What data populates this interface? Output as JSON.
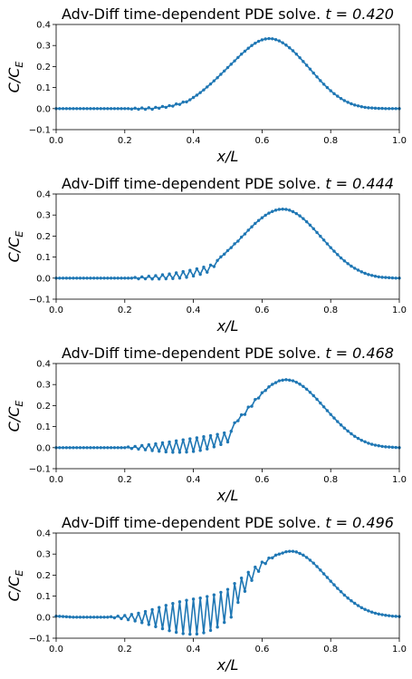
{
  "chart_data": [
    {
      "type": "line",
      "title_prefix": "Adv-Diff time-dependent PDE solve. ",
      "title_time": "t = 0.420",
      "xlabel": "x/L",
      "ylabel": "C/C_E",
      "xlim": [
        0,
        1
      ],
      "ylim": [
        -0.1,
        0.4
      ],
      "xticks": [
        "0.0",
        "0.2",
        "0.4",
        "0.6",
        "0.8",
        "1.0"
      ],
      "yticks": [
        "−0.1",
        "0.0",
        "0.1",
        "0.2",
        "0.3",
        "0.4"
      ],
      "series": [
        {
          "color": "#1f77b4",
          "x": [
            0,
            0.01,
            0.02,
            0.03,
            0.04,
            0.05,
            0.06,
            0.07,
            0.08,
            0.09,
            0.1,
            0.11,
            0.12,
            0.13,
            0.14,
            0.15,
            0.16,
            0.17,
            0.18,
            0.19,
            0.2,
            0.21,
            0.22,
            0.23,
            0.24,
            0.25,
            0.26,
            0.27,
            0.28,
            0.29,
            0.3,
            0.31,
            0.32,
            0.33,
            0.34,
            0.35,
            0.36,
            0.37,
            0.38,
            0.39,
            0.4,
            0.41,
            0.42,
            0.43,
            0.44,
            0.45,
            0.46,
            0.47,
            0.48,
            0.49,
            0.5,
            0.51,
            0.52,
            0.53,
            0.54,
            0.55,
            0.56,
            0.57,
            0.58,
            0.59,
            0.6,
            0.61,
            0.62,
            0.63,
            0.64,
            0.65,
            0.66,
            0.67,
            0.68,
            0.69,
            0.7,
            0.71,
            0.72,
            0.73,
            0.74,
            0.75,
            0.76,
            0.77,
            0.78,
            0.79,
            0.8,
            0.81,
            0.82,
            0.83,
            0.84,
            0.85,
            0.86,
            0.87,
            0.88,
            0.89,
            0.9,
            0.91,
            0.92,
            0.93,
            0.94,
            0.95,
            0.96,
            0.97,
            0.98,
            0.99,
            1.0
          ],
          "y": [
            0.0,
            0.0,
            0.0,
            0.0,
            0.0,
            0.0,
            0.0,
            0.0,
            0.0,
            0.0,
            0.0,
            0.0,
            0.0,
            0.0,
            0.0,
            0.0,
            0.0,
            0.0,
            0.0,
            0.0,
            0.0,
            0.0,
            -0.002,
            0.002,
            -0.003,
            0.003,
            -0.003,
            0.004,
            -0.003,
            0.006,
            0.002,
            0.01,
            0.006,
            0.014,
            0.012,
            0.022,
            0.02,
            0.031,
            0.032,
            0.042,
            0.053,
            0.064,
            0.076,
            0.089,
            0.103,
            0.117,
            0.132,
            0.147,
            0.163,
            0.179,
            0.195,
            0.211,
            0.227,
            0.243,
            0.259,
            0.273,
            0.287,
            0.3,
            0.311,
            0.32,
            0.327,
            0.331,
            0.333,
            0.332,
            0.328,
            0.322,
            0.313,
            0.302,
            0.289,
            0.275,
            0.259,
            0.242,
            0.224,
            0.206,
            0.188,
            0.169,
            0.151,
            0.133,
            0.116,
            0.1,
            0.085,
            0.071,
            0.059,
            0.048,
            0.038,
            0.03,
            0.023,
            0.017,
            0.013,
            0.009,
            0.006,
            0.004,
            0.003,
            0.002,
            0.001,
            0.001,
            0.0,
            0.0,
            0.0,
            0.0,
            0.0
          ]
        }
      ]
    },
    {
      "type": "line",
      "title_prefix": "Adv-Diff time-dependent PDE solve. ",
      "title_time": "t = 0.444",
      "xlabel": "x/L",
      "ylabel": "C/C_E",
      "xlim": [
        0,
        1
      ],
      "ylim": [
        -0.1,
        0.4
      ],
      "xticks": [
        "0.0",
        "0.2",
        "0.4",
        "0.6",
        "0.8",
        "1.0"
      ],
      "yticks": [
        "−0.1",
        "0.0",
        "0.1",
        "0.2",
        "0.3",
        "0.4"
      ],
      "series": [
        {
          "color": "#1f77b4",
          "x": [
            0,
            0.01,
            0.02,
            0.03,
            0.04,
            0.05,
            0.06,
            0.07,
            0.08,
            0.09,
            0.1,
            0.11,
            0.12,
            0.13,
            0.14,
            0.15,
            0.16,
            0.17,
            0.18,
            0.19,
            0.2,
            0.21,
            0.22,
            0.23,
            0.24,
            0.25,
            0.26,
            0.27,
            0.28,
            0.29,
            0.3,
            0.31,
            0.32,
            0.33,
            0.34,
            0.35,
            0.36,
            0.37,
            0.38,
            0.39,
            0.4,
            0.41,
            0.42,
            0.43,
            0.44,
            0.45,
            0.46,
            0.47,
            0.48,
            0.49,
            0.5,
            0.51,
            0.52,
            0.53,
            0.54,
            0.55,
            0.56,
            0.57,
            0.58,
            0.59,
            0.6,
            0.61,
            0.62,
            0.63,
            0.64,
            0.65,
            0.66,
            0.67,
            0.68,
            0.69,
            0.7,
            0.71,
            0.72,
            0.73,
            0.74,
            0.75,
            0.76,
            0.77,
            0.78,
            0.79,
            0.8,
            0.81,
            0.82,
            0.83,
            0.84,
            0.85,
            0.86,
            0.87,
            0.88,
            0.89,
            0.9,
            0.91,
            0.92,
            0.93,
            0.94,
            0.95,
            0.96,
            0.97,
            0.98,
            0.99,
            1.0
          ],
          "y": [
            0.0,
            0.0,
            0.0,
            0.0,
            0.0,
            0.0,
            0.0,
            0.0,
            0.0,
            0.0,
            0.0,
            0.0,
            0.0,
            0.0,
            0.0,
            0.0,
            0.0,
            0.0,
            0.0,
            0.0,
            0.0,
            0.0,
            0.0,
            0.003,
            -0.003,
            0.006,
            -0.003,
            0.009,
            -0.004,
            0.012,
            -0.004,
            0.016,
            -0.003,
            0.02,
            -0.002,
            0.025,
            0.0,
            0.031,
            0.004,
            0.037,
            0.01,
            0.044,
            0.018,
            0.052,
            0.028,
            0.062,
            0.055,
            0.084,
            0.101,
            0.114,
            0.131,
            0.145,
            0.163,
            0.176,
            0.195,
            0.21,
            0.228,
            0.244,
            0.26,
            0.274,
            0.287,
            0.299,
            0.309,
            0.317,
            0.323,
            0.327,
            0.328,
            0.327,
            0.323,
            0.316,
            0.307,
            0.296,
            0.283,
            0.268,
            0.252,
            0.235,
            0.217,
            0.199,
            0.181,
            0.163,
            0.145,
            0.128,
            0.112,
            0.096,
            0.082,
            0.069,
            0.057,
            0.047,
            0.038,
            0.03,
            0.023,
            0.017,
            0.013,
            0.009,
            0.006,
            0.004,
            0.003,
            0.002,
            0.001,
            0.0,
            0.0
          ]
        }
      ]
    },
    {
      "type": "line",
      "title_prefix": "Adv-Diff time-dependent PDE solve. ",
      "title_time": "t = 0.468",
      "xlabel": "x/L",
      "ylabel": "C/C_E",
      "xlim": [
        0,
        1
      ],
      "ylim": [
        -0.1,
        0.4
      ],
      "xticks": [
        "0.0",
        "0.2",
        "0.4",
        "0.6",
        "0.8",
        "1.0"
      ],
      "yticks": [
        "−0.1",
        "0.0",
        "0.1",
        "0.2",
        "0.3",
        "0.4"
      ],
      "series": [
        {
          "color": "#1f77b4",
          "x": [
            0,
            0.01,
            0.02,
            0.03,
            0.04,
            0.05,
            0.06,
            0.07,
            0.08,
            0.09,
            0.1,
            0.11,
            0.12,
            0.13,
            0.14,
            0.15,
            0.16,
            0.17,
            0.18,
            0.19,
            0.2,
            0.21,
            0.22,
            0.23,
            0.24,
            0.25,
            0.26,
            0.27,
            0.28,
            0.29,
            0.3,
            0.31,
            0.32,
            0.33,
            0.34,
            0.35,
            0.36,
            0.37,
            0.38,
            0.39,
            0.4,
            0.41,
            0.42,
            0.43,
            0.44,
            0.45,
            0.46,
            0.47,
            0.48,
            0.49,
            0.5,
            0.51,
            0.52,
            0.53,
            0.54,
            0.55,
            0.56,
            0.57,
            0.58,
            0.59,
            0.6,
            0.61,
            0.62,
            0.63,
            0.64,
            0.65,
            0.66,
            0.67,
            0.68,
            0.69,
            0.7,
            0.71,
            0.72,
            0.73,
            0.74,
            0.75,
            0.76,
            0.77,
            0.78,
            0.79,
            0.8,
            0.81,
            0.82,
            0.83,
            0.84,
            0.85,
            0.86,
            0.87,
            0.88,
            0.89,
            0.9,
            0.91,
            0.92,
            0.93,
            0.94,
            0.95,
            0.96,
            0.97,
            0.98,
            0.99,
            1.0
          ],
          "y": [
            0.0,
            0.0,
            0.0,
            0.0,
            0.0,
            0.0,
            0.0,
            0.0,
            0.0,
            0.0,
            0.0,
            0.0,
            0.0,
            0.0,
            0.0,
            0.0,
            0.0,
            0.0,
            0.0,
            0.0,
            0.0,
            0.003,
            -0.004,
            0.006,
            -0.007,
            0.01,
            -0.01,
            0.014,
            -0.014,
            0.018,
            -0.017,
            0.023,
            -0.02,
            0.027,
            -0.022,
            0.032,
            -0.022,
            0.037,
            -0.021,
            0.042,
            -0.018,
            0.047,
            -0.013,
            0.052,
            -0.006,
            0.057,
            0.004,
            0.063,
            0.015,
            0.07,
            0.027,
            0.078,
            0.118,
            0.128,
            0.156,
            0.158,
            0.193,
            0.197,
            0.229,
            0.236,
            0.261,
            0.272,
            0.289,
            0.301,
            0.309,
            0.318,
            0.321,
            0.323,
            0.321,
            0.318,
            0.311,
            0.302,
            0.291,
            0.278,
            0.263,
            0.247,
            0.23,
            0.212,
            0.194,
            0.176,
            0.158,
            0.141,
            0.124,
            0.108,
            0.093,
            0.079,
            0.066,
            0.054,
            0.044,
            0.035,
            0.028,
            0.021,
            0.016,
            0.012,
            0.009,
            0.006,
            0.004,
            0.003,
            0.002,
            0.001,
            0.0
          ]
        }
      ]
    },
    {
      "type": "line",
      "title_prefix": "Adv-Diff time-dependent PDE solve. ",
      "title_time": "t = 0.496",
      "xlabel": "x/L",
      "ylabel": "C/C_E",
      "xlim": [
        0,
        1
      ],
      "ylim": [
        -0.1,
        0.4
      ],
      "xticks": [
        "0.0",
        "0.2",
        "0.4",
        "0.6",
        "0.8",
        "1.0"
      ],
      "yticks": [
        "−0.1",
        "0.0",
        "0.1",
        "0.2",
        "0.3",
        "0.4"
      ],
      "series": [
        {
          "color": "#1f77b4",
          "x": [
            0,
            0.01,
            0.02,
            0.03,
            0.04,
            0.05,
            0.06,
            0.07,
            0.08,
            0.09,
            0.1,
            0.11,
            0.12,
            0.13,
            0.14,
            0.15,
            0.16,
            0.17,
            0.18,
            0.19,
            0.2,
            0.21,
            0.22,
            0.23,
            0.24,
            0.25,
            0.26,
            0.27,
            0.28,
            0.29,
            0.3,
            0.31,
            0.32,
            0.33,
            0.34,
            0.35,
            0.36,
            0.37,
            0.38,
            0.39,
            0.4,
            0.41,
            0.42,
            0.43,
            0.44,
            0.45,
            0.46,
            0.47,
            0.48,
            0.49,
            0.5,
            0.51,
            0.52,
            0.53,
            0.54,
            0.55,
            0.56,
            0.57,
            0.58,
            0.59,
            0.6,
            0.61,
            0.62,
            0.63,
            0.64,
            0.65,
            0.66,
            0.67,
            0.68,
            0.69,
            0.7,
            0.71,
            0.72,
            0.73,
            0.74,
            0.75,
            0.76,
            0.77,
            0.78,
            0.79,
            0.8,
            0.81,
            0.82,
            0.83,
            0.84,
            0.85,
            0.86,
            0.87,
            0.88,
            0.89,
            0.9,
            0.91,
            0.92,
            0.93,
            0.94,
            0.95,
            0.96,
            0.97,
            0.98,
            0.99,
            1.0
          ],
          "y": [
            0.005,
            0.004,
            0.003,
            0.002,
            0.001,
            0.0,
            0.0,
            0.0,
            0.0,
            0.0,
            0.0,
            0.0,
            0.0,
            0.0,
            0.0,
            0.0,
            0.002,
            -0.003,
            0.005,
            -0.007,
            0.008,
            -0.012,
            0.013,
            -0.018,
            0.019,
            -0.026,
            0.027,
            -0.035,
            0.036,
            -0.045,
            0.046,
            -0.055,
            0.056,
            -0.064,
            0.065,
            -0.072,
            0.073,
            -0.078,
            0.08,
            -0.081,
            0.086,
            -0.08,
            0.091,
            -0.074,
            0.098,
            -0.063,
            0.106,
            -0.047,
            0.118,
            -0.025,
            0.132,
            0.0,
            0.16,
            0.07,
            0.186,
            0.123,
            0.213,
            0.175,
            0.238,
            0.218,
            0.262,
            0.255,
            0.281,
            0.282,
            0.295,
            0.3,
            0.305,
            0.311,
            0.313,
            0.313,
            0.31,
            0.303,
            0.295,
            0.284,
            0.271,
            0.257,
            0.241,
            0.224,
            0.206,
            0.189,
            0.171,
            0.154,
            0.137,
            0.121,
            0.105,
            0.091,
            0.078,
            0.066,
            0.055,
            0.045,
            0.037,
            0.03,
            0.024,
            0.019,
            0.015,
            0.012,
            0.009,
            0.007,
            0.005,
            0.004,
            0.003
          ]
        }
      ]
    }
  ]
}
